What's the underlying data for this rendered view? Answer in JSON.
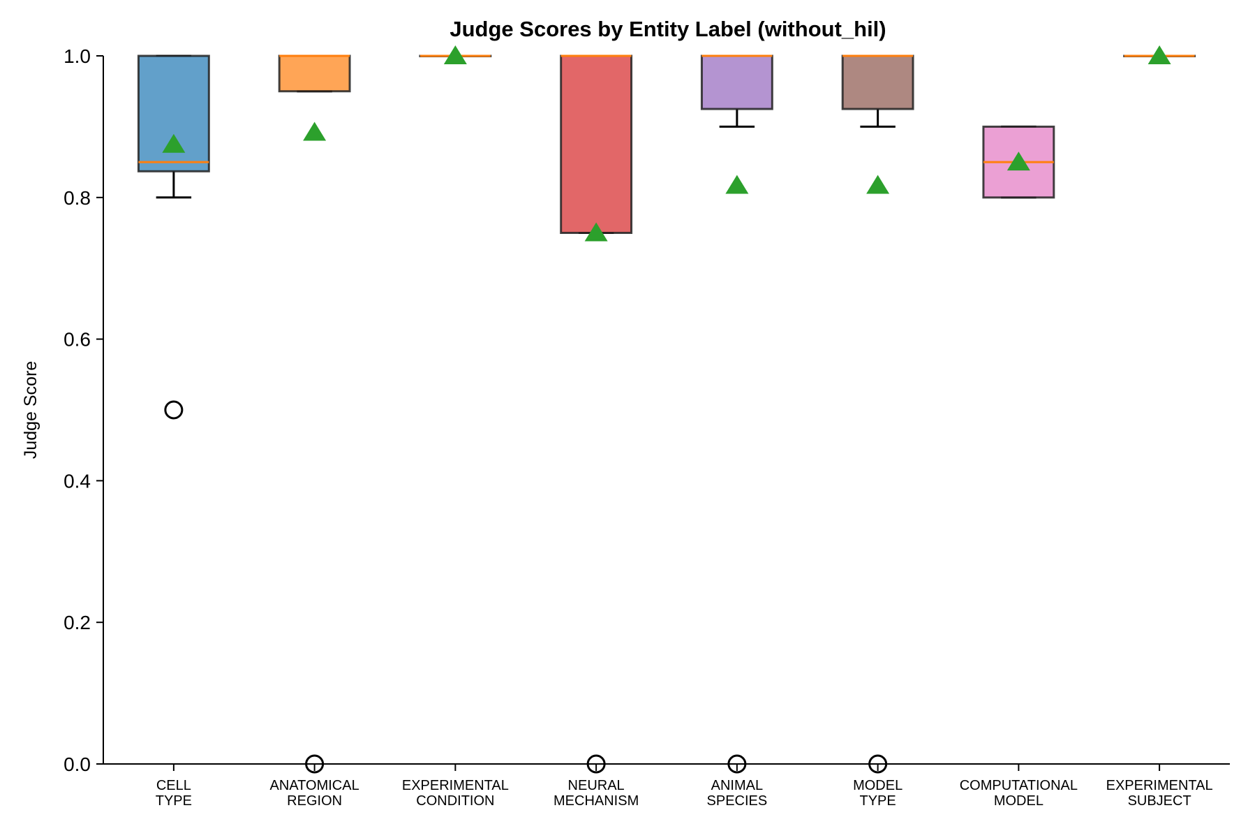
{
  "chart_data": {
    "type": "box",
    "title": "Judge Scores by Entity Label (without_hil)",
    "xlabel": "",
    "ylabel": "Judge Score",
    "ylim": [
      0,
      1.0
    ],
    "yticks": [
      "0.0",
      "0.2",
      "0.4",
      "0.6",
      "0.8",
      "1.0"
    ],
    "grid": false,
    "categories": [
      [
        "CELL",
        "TYPE"
      ],
      [
        "ANATOMICAL",
        "REGION"
      ],
      [
        "EXPERIMENTAL",
        "CONDITION"
      ],
      [
        "NEURAL",
        "MECHANISM"
      ],
      [
        "ANIMAL",
        "SPECIES"
      ],
      [
        "MODEL",
        "TYPE"
      ],
      [
        "COMPUTATIONAL",
        "MODEL"
      ],
      [
        "EXPERIMENTAL",
        "SUBJECT"
      ]
    ],
    "boxes": [
      {
        "whisker_low": 0.8,
        "q1": 0.837,
        "median": 0.85,
        "q3": 1.0,
        "whisker_high": 1.0,
        "mean": 0.875,
        "outliers": [
          0.5
        ],
        "color": "#1f77b4"
      },
      {
        "whisker_low": 0.95,
        "q1": 0.95,
        "median": 1.0,
        "q3": 1.0,
        "whisker_high": 1.0,
        "mean": 0.892,
        "outliers": [
          0.0
        ],
        "color": "#ff7f0e"
      },
      {
        "whisker_low": 1.0,
        "q1": 1.0,
        "median": 1.0,
        "q3": 1.0,
        "whisker_high": 1.0,
        "mean": 1.0,
        "outliers": [],
        "color": "#2ca02c"
      },
      {
        "whisker_low": 0.75,
        "q1": 0.75,
        "median": 1.0,
        "q3": 1.0,
        "whisker_high": 1.0,
        "mean": 0.75,
        "outliers": [
          0.0
        ],
        "color": "#d62728"
      },
      {
        "whisker_low": 0.9,
        "q1": 0.925,
        "median": 1.0,
        "q3": 1.0,
        "whisker_high": 1.0,
        "mean": 0.817,
        "outliers": [
          0.0
        ],
        "color": "#9467bd"
      },
      {
        "whisker_low": 0.9,
        "q1": 0.925,
        "median": 1.0,
        "q3": 1.0,
        "whisker_high": 1.0,
        "mean": 0.817,
        "outliers": [
          0.0
        ],
        "color": "#8c564b"
      },
      {
        "whisker_low": 0.8,
        "q1": 0.8,
        "median": 0.85,
        "q3": 0.9,
        "whisker_high": 0.9,
        "mean": 0.85,
        "outliers": [],
        "color": "#e377c2"
      },
      {
        "whisker_low": 1.0,
        "q1": 1.0,
        "median": 1.0,
        "q3": 1.0,
        "whisker_high": 1.0,
        "mean": 1.0,
        "outliers": [],
        "color": "#7f7f7f"
      }
    ],
    "median_color": "#ff7f0e",
    "mean_marker_color": "#2ca02c",
    "box_edge_color": "#222222"
  }
}
